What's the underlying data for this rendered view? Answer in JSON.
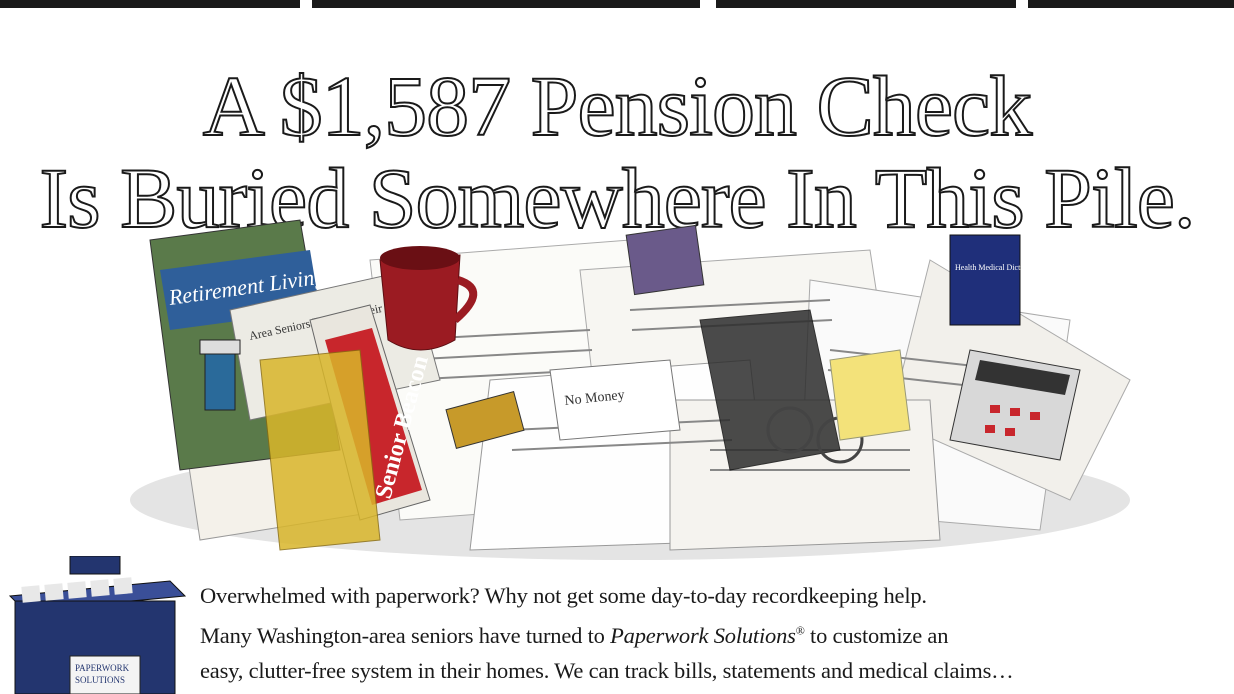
{
  "headline": {
    "line1": "A $1,587 Pension Check",
    "line2": "Is Buried Somewhere In This Pile."
  },
  "pile": {
    "magazine_title": "Retirement Living",
    "newspaper_name": "Senior Beacon",
    "article_headline": "Area Seniors Tune Up Their Drivi",
    "book_cover": "Health Medical Dictionary",
    "envelope_text": "No Money"
  },
  "product": {
    "box_label_1": "PAPERWORK",
    "box_label_2": "SOLUTIONS"
  },
  "body": {
    "line1": "Overwhelmed with paperwork? Why not get some day-to-day recordkeeping help.",
    "line2_a": "Many Washington-area seniors have turned to ",
    "brand": "Paperwork Solutions",
    "reg": "®",
    "line2_b": " to customize an",
    "line3": "easy, clutter-free system in their homes. We can track bills, statements and medical claims…"
  },
  "colors": {
    "ink": "#1a1a1a",
    "newspaper_red": "#c8262c",
    "mug_red": "#9b1b22",
    "box_blue": "#23356f"
  }
}
